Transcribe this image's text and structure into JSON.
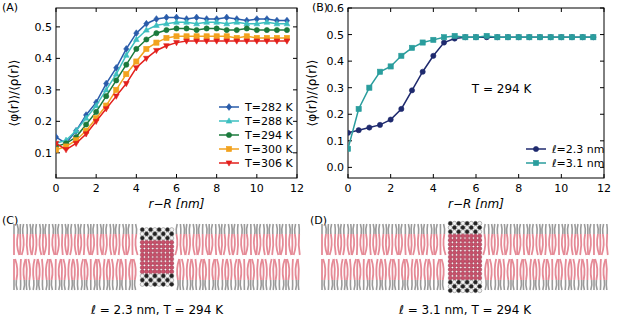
{
  "chart_data": [
    {
      "type": "line",
      "title": "(A)",
      "x_label": "r−R [nm]",
      "y_label": "⟨φ(r)⟩/⟨ρ(r)⟩",
      "x": [
        0,
        0.5,
        1,
        1.5,
        2,
        2.5,
        3,
        3.5,
        4,
        4.5,
        5,
        5.5,
        6,
        6.5,
        7,
        7.5,
        8,
        8.5,
        9,
        9.5,
        10,
        10.5,
        11,
        11.5
      ],
      "series": [
        {
          "name": "T=282 K",
          "color": "#2a5caa",
          "marker": "diamond",
          "values": [
            0.15,
            0.13,
            0.17,
            0.22,
            0.26,
            0.32,
            0.37,
            0.43,
            0.48,
            0.51,
            0.525,
            0.53,
            0.53,
            0.525,
            0.53,
            0.525,
            0.525,
            0.53,
            0.525,
            0.52,
            0.525,
            0.525,
            0.52,
            0.52
          ]
        },
        {
          "name": "T=288 K",
          "color": "#3dbfc0",
          "marker": "triangle",
          "values": [
            0.13,
            0.14,
            0.17,
            0.21,
            0.25,
            0.3,
            0.35,
            0.41,
            0.46,
            0.49,
            0.505,
            0.51,
            0.515,
            0.515,
            0.51,
            0.515,
            0.515,
            0.51,
            0.515,
            0.51,
            0.51,
            0.515,
            0.51,
            0.51
          ]
        },
        {
          "name": "T=294 K",
          "color": "#1b7a3c",
          "marker": "circle",
          "values": [
            0.12,
            0.13,
            0.15,
            0.19,
            0.23,
            0.28,
            0.33,
            0.38,
            0.43,
            0.46,
            0.48,
            0.49,
            0.495,
            0.495,
            0.49,
            0.495,
            0.495,
            0.49,
            0.49,
            0.495,
            0.49,
            0.49,
            0.49,
            0.49
          ]
        },
        {
          "name": "T=300 K",
          "color": "#f2a21f",
          "marker": "square",
          "values": [
            0.11,
            0.12,
            0.14,
            0.17,
            0.21,
            0.25,
            0.3,
            0.35,
            0.39,
            0.43,
            0.45,
            0.465,
            0.47,
            0.47,
            0.47,
            0.47,
            0.47,
            0.47,
            0.465,
            0.47,
            0.465,
            0.465,
            0.465,
            0.465
          ]
        },
        {
          "name": "T=306 K",
          "color": "#e3201c",
          "marker": "triangle-down",
          "values": [
            0.13,
            0.11,
            0.13,
            0.16,
            0.2,
            0.24,
            0.28,
            0.32,
            0.37,
            0.4,
            0.425,
            0.44,
            0.45,
            0.455,
            0.455,
            0.455,
            0.455,
            0.455,
            0.455,
            0.455,
            0.455,
            0.455,
            0.455,
            0.455
          ]
        }
      ],
      "xlim": [
        0,
        12
      ],
      "ylim": [
        0.02,
        0.56
      ],
      "xticks": [
        0,
        2,
        4,
        6,
        8,
        10,
        12
      ],
      "yticks": [
        0.1,
        0.2,
        0.3,
        0.4,
        0.5
      ],
      "legend": "lower right"
    },
    {
      "type": "line",
      "title": "(B)",
      "x_label": "r−R [nm]",
      "y_label": "⟨φ(r)⟩/⟨ρ(r)⟩",
      "annotations": [
        "T = 294 K"
      ],
      "x": [
        0,
        0.5,
        1,
        1.5,
        2,
        2.5,
        3,
        3.5,
        4,
        4.5,
        5,
        5.5,
        6,
        6.5,
        7,
        7.5,
        8,
        8.5,
        9,
        9.5,
        10,
        10.5,
        11,
        11.5
      ],
      "series": [
        {
          "name": "ℓ=2.3 nm",
          "color": "#1f2a6e",
          "marker": "circle",
          "values": [
            0.13,
            0.14,
            0.15,
            0.16,
            0.18,
            0.22,
            0.29,
            0.36,
            0.42,
            0.47,
            0.485,
            0.49,
            0.49,
            0.49,
            0.49,
            0.49,
            0.49,
            0.49,
            0.49,
            0.49,
            0.49,
            0.49,
            0.49,
            0.49
          ]
        },
        {
          "name": "ℓ=3.1 nm",
          "color": "#2a9d9d",
          "marker": "square",
          "values": [
            0.07,
            0.22,
            0.3,
            0.36,
            0.38,
            0.42,
            0.45,
            0.47,
            0.48,
            0.49,
            0.495,
            0.49,
            0.49,
            0.495,
            0.49,
            0.49,
            0.49,
            0.49,
            0.49,
            0.49,
            0.49,
            0.49,
            0.49,
            0.49
          ]
        }
      ],
      "xlim": [
        0,
        12
      ],
      "ylim": [
        -0.04,
        0.6
      ],
      "xticks": [
        0,
        2,
        4,
        6,
        8,
        10,
        12
      ],
      "yticks": [
        {
          "value": 0,
          "label": "0.0"
        },
        0.1,
        0.2,
        0.3,
        0.4,
        0.5,
        0.6
      ],
      "legend": "lower right"
    }
  ],
  "images": [
    {
      "label": "(C)",
      "caption": "ℓ = 2.3 nm, T = 294 K"
    },
    {
      "label": "(D)",
      "caption": "ℓ = 3.1 nm, T = 294 K"
    }
  ]
}
